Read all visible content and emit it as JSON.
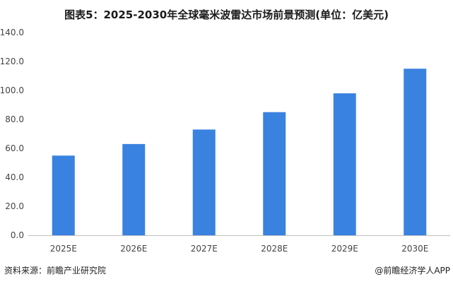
{
  "chart_data": {
    "type": "bar",
    "title": "图表5：2025-2030年全球毫米波雷达市场前景预测(单位：亿美元)",
    "categories": [
      "2025E",
      "2026E",
      "2027E",
      "2028E",
      "2029E",
      "2030E"
    ],
    "values": [
      55,
      63,
      73,
      85,
      98,
      115
    ],
    "yticks": [
      "0.0",
      "20.0",
      "40.0",
      "60.0",
      "80.0",
      "100.0",
      "120.0",
      "140.0"
    ],
    "ylim": [
      0,
      140
    ],
    "grid": false,
    "bar_color": "#3a82e0",
    "axis_color": "#bfbfbf"
  },
  "footer": {
    "source": "资料来源：前瞻产业研究院",
    "credit": "@前瞻经济学人APP"
  }
}
